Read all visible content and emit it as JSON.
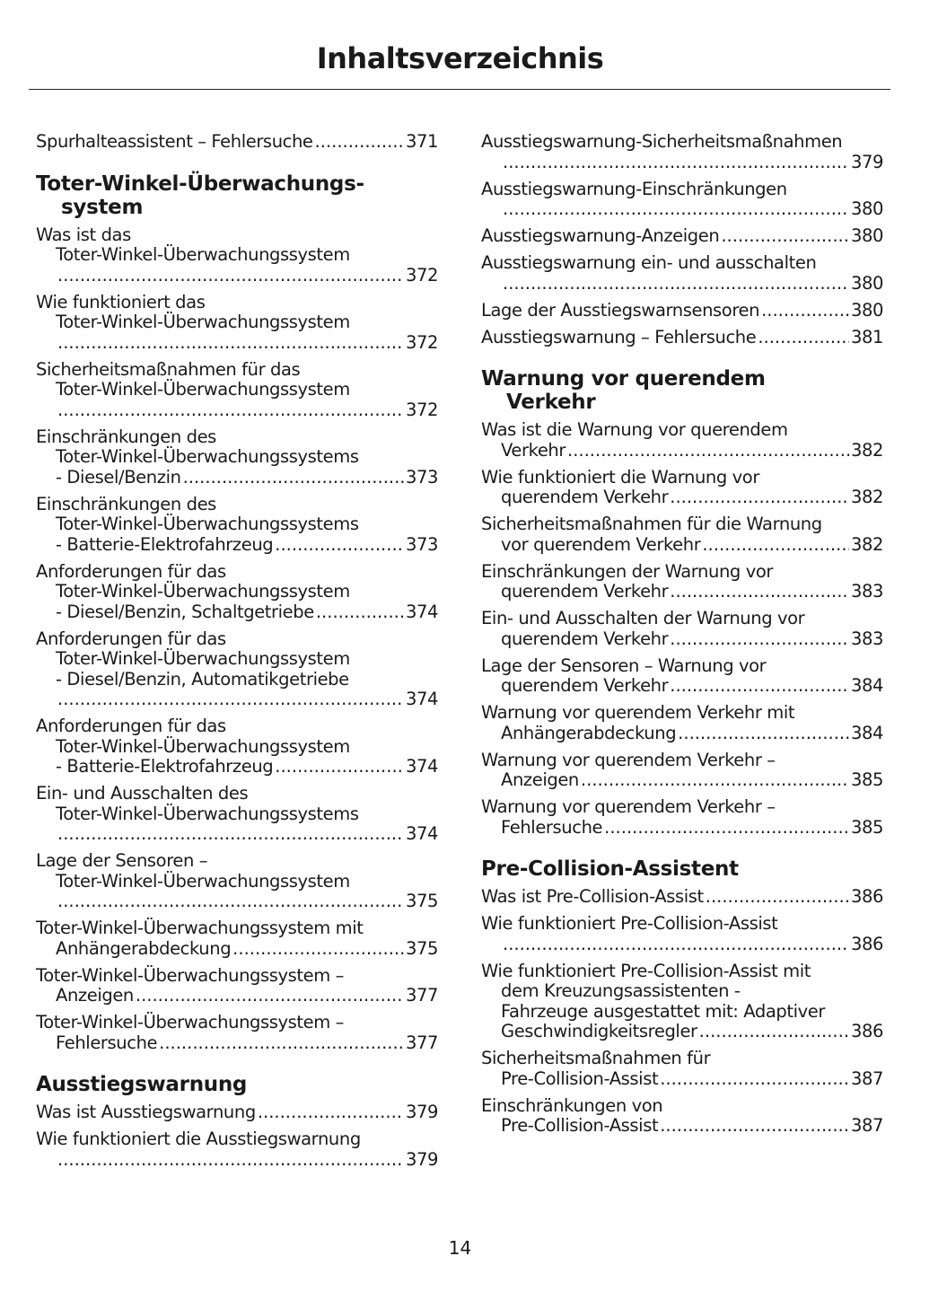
{
  "title": "Inhaltsverzeichnis",
  "page_number": "14",
  "columns": [
    [
      {
        "type": "entry",
        "lines": [
          "Spurhalteassistent – Fehlersuche"
        ],
        "page": "371"
      },
      {
        "type": "heading",
        "lines": [
          "Toter-Winkel-Überwachungs-",
          "system"
        ]
      },
      {
        "type": "entry",
        "lines": [
          "Was ist das",
          "Toter-Winkel-Überwachungssystem",
          ""
        ],
        "page": "372"
      },
      {
        "type": "entry",
        "lines": [
          "Wie funktioniert das",
          "Toter-Winkel-Überwachungssystem",
          ""
        ],
        "page": "372"
      },
      {
        "type": "entry",
        "lines": [
          "Sicherheitsmaßnahmen für das",
          "Toter-Winkel-Überwachungssystem",
          ""
        ],
        "page": "372"
      },
      {
        "type": "entry",
        "lines": [
          "Einschränkungen des",
          "Toter-Winkel-Überwachungssystems",
          "- Diesel/Benzin"
        ],
        "page": "373"
      },
      {
        "type": "entry",
        "lines": [
          "Einschränkungen des",
          "Toter-Winkel-Überwachungssystems",
          "- Batterie-Elektrofahrzeug"
        ],
        "page": "373"
      },
      {
        "type": "entry",
        "lines": [
          "Anforderungen für das",
          "Toter-Winkel-Überwachungssystem",
          "- Diesel/Benzin, Schaltgetriebe"
        ],
        "page": "374"
      },
      {
        "type": "entry",
        "lines": [
          "Anforderungen für das",
          "Toter-Winkel-Überwachungssystem",
          "- Diesel/Benzin, Automatikgetriebe",
          ""
        ],
        "page": "374"
      },
      {
        "type": "entry",
        "lines": [
          "Anforderungen für das",
          "Toter-Winkel-Überwachungssystem",
          "- Batterie-Elektrofahrzeug"
        ],
        "page": "374"
      },
      {
        "type": "entry",
        "lines": [
          "Ein- und Ausschalten des",
          "Toter-Winkel-Überwachungssystems",
          ""
        ],
        "page": "374"
      },
      {
        "type": "entry",
        "lines": [
          "Lage der Sensoren –",
          "Toter-Winkel-Überwachungssystem",
          ""
        ],
        "page": "375"
      },
      {
        "type": "entry",
        "lines": [
          "Toter-Winkel-Überwachungssystem mit",
          "Anhängerabdeckung"
        ],
        "page": "375"
      },
      {
        "type": "entry",
        "lines": [
          "Toter-Winkel-Überwachungssystem –",
          "Anzeigen"
        ],
        "page": "377"
      },
      {
        "type": "entry",
        "lines": [
          "Toter-Winkel-Überwachungssystem –",
          "Fehlersuche"
        ],
        "page": "377"
      },
      {
        "type": "heading",
        "lines": [
          "Ausstiegswarnung"
        ]
      },
      {
        "type": "entry",
        "lines": [
          "Was ist Ausstiegswarnung"
        ],
        "page": "379"
      },
      {
        "type": "entry",
        "lines": [
          "Wie funktioniert die Ausstiegswarnung",
          ""
        ],
        "page": "379"
      }
    ],
    [
      {
        "type": "entry",
        "lines": [
          "Ausstiegswarnung-Sicherheitsmaßnahmen",
          ""
        ],
        "page": "379"
      },
      {
        "type": "entry",
        "lines": [
          "Ausstiegswarnung-Einschränkungen",
          ""
        ],
        "page": "380"
      },
      {
        "type": "entry",
        "lines": [
          "Ausstiegswarnung-Anzeigen"
        ],
        "page": "380"
      },
      {
        "type": "entry",
        "lines": [
          "Ausstiegswarnung ein- und ausschalten",
          ""
        ],
        "page": "380"
      },
      {
        "type": "entry",
        "lines": [
          "Lage der Ausstiegswarnsensoren"
        ],
        "page": "380"
      },
      {
        "type": "entry",
        "lines": [
          "Ausstiegswarnung – Fehlersuche"
        ],
        "page": "381"
      },
      {
        "type": "heading",
        "lines": [
          "Warnung vor querendem",
          "Verkehr"
        ]
      },
      {
        "type": "entry",
        "lines": [
          "Was ist die Warnung vor querendem",
          "Verkehr"
        ],
        "page": "382"
      },
      {
        "type": "entry",
        "lines": [
          "Wie funktioniert die Warnung vor",
          "querendem Verkehr"
        ],
        "page": "382"
      },
      {
        "type": "entry",
        "lines": [
          "Sicherheitsmaßnahmen für die Warnung",
          "vor querendem Verkehr"
        ],
        "page": "382"
      },
      {
        "type": "entry",
        "lines": [
          "Einschränkungen der Warnung vor",
          "querendem Verkehr"
        ],
        "page": "383"
      },
      {
        "type": "entry",
        "lines": [
          "Ein- und Ausschalten der Warnung vor",
          "querendem Verkehr"
        ],
        "page": "383"
      },
      {
        "type": "entry",
        "lines": [
          "Lage der Sensoren – Warnung vor",
          "querendem Verkehr"
        ],
        "page": "384"
      },
      {
        "type": "entry",
        "lines": [
          "Warnung vor querendem Verkehr mit",
          "Anhängerabdeckung"
        ],
        "page": "384"
      },
      {
        "type": "entry",
        "lines": [
          "Warnung vor querendem Verkehr –",
          "Anzeigen"
        ],
        "page": "385"
      },
      {
        "type": "entry",
        "lines": [
          "Warnung vor querendem Verkehr –",
          "Fehlersuche"
        ],
        "page": "385"
      },
      {
        "type": "heading",
        "lines": [
          "Pre-Collision-Assistent"
        ]
      },
      {
        "type": "entry",
        "lines": [
          "Was ist Pre-Collision-Assist"
        ],
        "page": "386"
      },
      {
        "type": "entry",
        "lines": [
          "Wie funktioniert Pre-Collision-Assist",
          ""
        ],
        "page": "386"
      },
      {
        "type": "entry",
        "lines": [
          "Wie funktioniert Pre-Collision-Assist mit",
          "dem Kreuzungsassistenten -",
          "Fahrzeuge ausgestattet mit: Adaptiver",
          "Geschwindigkeitsregler"
        ],
        "page": "386"
      },
      {
        "type": "entry",
        "lines": [
          "Sicherheitsmaßnahmen für",
          "Pre-Collision-Assist"
        ],
        "page": "387"
      },
      {
        "type": "entry",
        "lines": [
          "Einschränkungen von",
          "Pre-Collision-Assist"
        ],
        "page": "387"
      }
    ]
  ]
}
